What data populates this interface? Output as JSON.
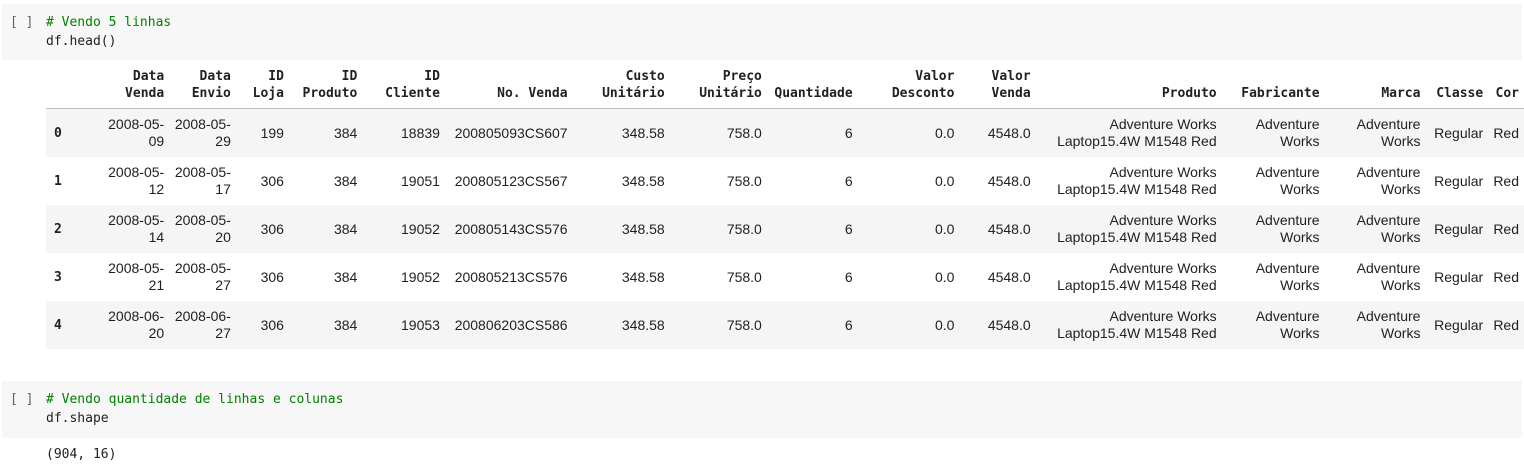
{
  "cells": [
    {
      "run_indicator": "[ ]",
      "comment": "# Vendo 5 linhas",
      "code": "df.head()"
    },
    {
      "run_indicator": "[ ]",
      "comment": "# Vendo quantidade de linhas e colunas",
      "code": "df.shape",
      "output": "(904, 16)"
    }
  ],
  "table": {
    "columns": [
      "",
      "Data\nVenda",
      "Data\nEnvio",
      "ID\nLoja",
      "ID\nProduto",
      "ID\nCliente",
      "No. Venda",
      "Custo\nUnitário",
      "Preço\nUnitário",
      "Quantidade",
      "Valor\nDesconto",
      "Valor\nVenda",
      "Produto",
      "Fabricante",
      "Marca",
      "Classe",
      "Cor"
    ],
    "rows": [
      [
        "0",
        "2008-05-\n09",
        "2008-05-\n29",
        "199",
        "384",
        "18839",
        "200805093CS607",
        "348.58",
        "758.0",
        "6",
        "0.0",
        "4548.0",
        "Adventure Works\nLaptop15.4W M1548 Red",
        "Adventure\nWorks",
        "Adventure\nWorks",
        "Regular",
        "Red"
      ],
      [
        "1",
        "2008-05-\n12",
        "2008-05-\n17",
        "306",
        "384",
        "19051",
        "200805123CS567",
        "348.58",
        "758.0",
        "6",
        "0.0",
        "4548.0",
        "Adventure Works\nLaptop15.4W M1548 Red",
        "Adventure\nWorks",
        "Adventure\nWorks",
        "Regular",
        "Red"
      ],
      [
        "2",
        "2008-05-\n14",
        "2008-05-\n20",
        "306",
        "384",
        "19052",
        "200805143CS576",
        "348.58",
        "758.0",
        "6",
        "0.0",
        "4548.0",
        "Adventure Works\nLaptop15.4W M1548 Red",
        "Adventure\nWorks",
        "Adventure\nWorks",
        "Regular",
        "Red"
      ],
      [
        "3",
        "2008-05-\n21",
        "2008-05-\n27",
        "306",
        "384",
        "19052",
        "200805213CS576",
        "348.58",
        "758.0",
        "6",
        "0.0",
        "4548.0",
        "Adventure Works\nLaptop15.4W M1548 Red",
        "Adventure\nWorks",
        "Adventure\nWorks",
        "Regular",
        "Red"
      ],
      [
        "4",
        "2008-06-\n20",
        "2008-06-\n27",
        "306",
        "384",
        "19053",
        "200806203CS586",
        "348.58",
        "758.0",
        "6",
        "0.0",
        "4548.0",
        "Adventure Works\nLaptop15.4W M1548 Red",
        "Adventure\nWorks",
        "Adventure\nWorks",
        "Regular",
        "Red"
      ]
    ]
  }
}
